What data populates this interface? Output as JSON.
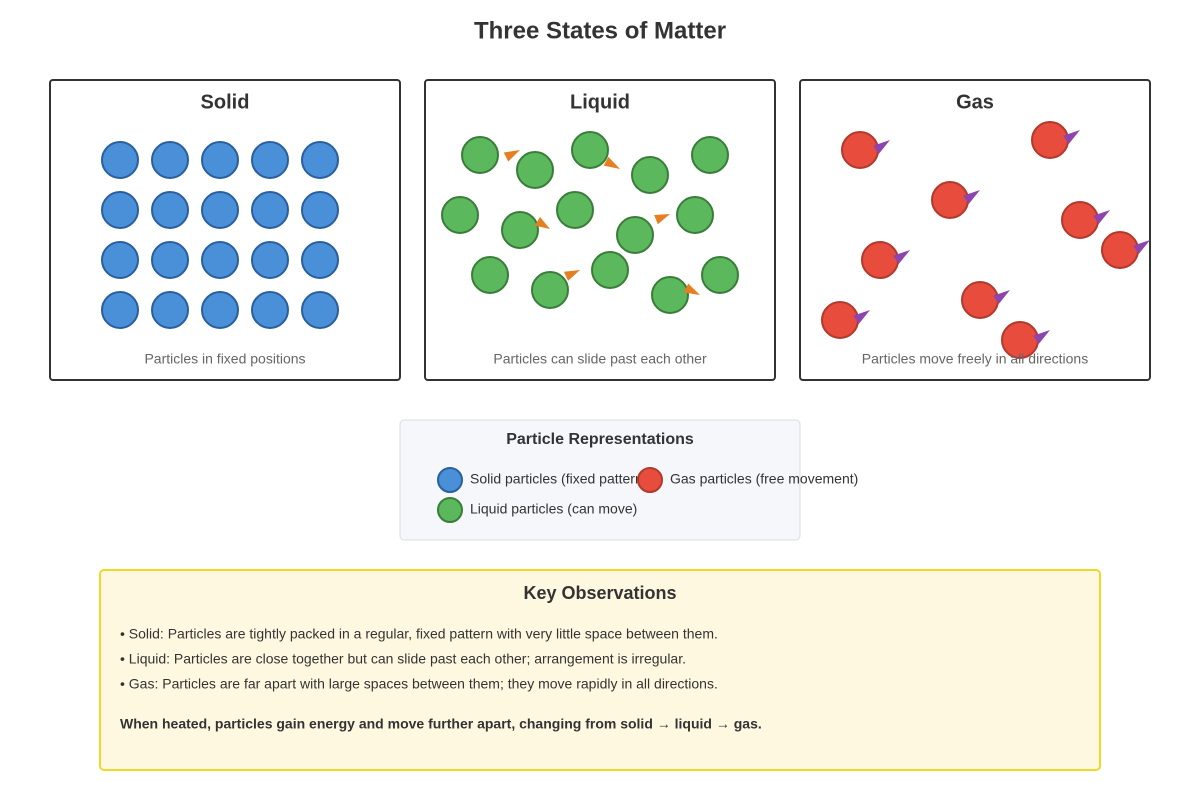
{
  "title": "Three States of Matter",
  "panels": [
    {
      "title": "Solid",
      "caption": "Particles in fixed positions"
    },
    {
      "title": "Liquid",
      "caption": "Particles can slide past each other"
    },
    {
      "title": "Gas",
      "caption": "Particles move freely in all directions"
    }
  ],
  "legend": {
    "title": "Particle Representations",
    "items": [
      "Solid particles (fixed pattern)",
      "Liquid particles (can move)",
      "Gas particles (free movement)"
    ]
  },
  "observations": {
    "title": "Key Observations",
    "bullets": [
      "• Solid: Particles are tightly packed in a regular, fixed pattern with very little space between them.",
      "• Liquid: Particles are close together but can slide past each other; arrangement is irregular.",
      "• Gas: Particles are far apart with large spaces between them; they move rapidly in all directions."
    ],
    "conclusion": "When heated, particles gain energy and move further apart, changing from solid → liquid → gas."
  }
}
